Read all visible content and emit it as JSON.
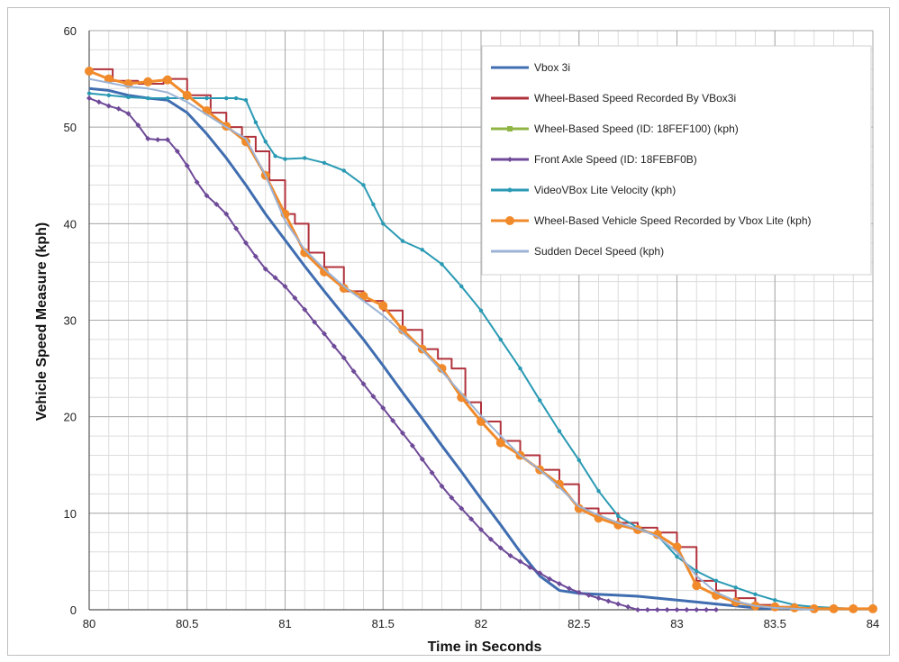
{
  "chart_data": {
    "type": "line",
    "title": "",
    "xlabel": "Time in Seconds",
    "ylabel": "Vehicle Speed Measure (kph)",
    "xlim": [
      80,
      84
    ],
    "ylim": [
      0,
      60
    ],
    "x_ticks": [
      80,
      80.5,
      81,
      81.5,
      82,
      82.5,
      83,
      83.5,
      84
    ],
    "x_tick_labels": [
      "80",
      "80.5",
      "81",
      "81.5",
      "82",
      "82.5",
      "83",
      "83.5",
      "84"
    ],
    "y_ticks": [
      0,
      10,
      20,
      30,
      40,
      50,
      60
    ],
    "y_tick_labels": [
      "0",
      "10",
      "20",
      "30",
      "40",
      "50",
      "60"
    ],
    "grid": true,
    "legend_position": "top-right",
    "series": [
      {
        "name": "Vbox 3i",
        "color": "#3f6db0",
        "marker": "none",
        "step": false,
        "x": [
          80,
          80.1,
          80.2,
          80.3,
          80.4,
          80.5,
          80.6,
          80.7,
          80.8,
          80.9,
          81,
          81.1,
          81.2,
          81.3,
          81.4,
          81.5,
          81.6,
          81.7,
          81.8,
          81.9,
          82,
          82.1,
          82.2,
          82.3,
          82.4,
          82.5,
          82.6,
          82.7,
          82.8,
          82.9,
          83,
          83.1,
          83.2,
          83.3,
          83.4,
          83.5
        ],
        "y": [
          54,
          53.8,
          53.3,
          53,
          52.8,
          51.5,
          49.3,
          46.8,
          44,
          41,
          38.3,
          35.6,
          33,
          30.5,
          28,
          25.3,
          22.5,
          19.8,
          17,
          14.3,
          11.5,
          8.8,
          6,
          3.5,
          2,
          1.7,
          1.6,
          1.5,
          1.4,
          1.2,
          1,
          0.8,
          0.6,
          0.4,
          0.2,
          0.1
        ]
      },
      {
        "name": "Wheel-Based Speed Recorded By VBox3i",
        "color": "#b0323c",
        "marker": "none",
        "step": true,
        "x": [
          80,
          80.12,
          80.25,
          80.38,
          80.5,
          80.62,
          80.7,
          80.78,
          80.85,
          80.92,
          81,
          81.05,
          81.12,
          81.2,
          81.3,
          81.4,
          81.5,
          81.6,
          81.7,
          81.78,
          81.85,
          81.92,
          82,
          82.1,
          82.2,
          82.3,
          82.4,
          82.5,
          82.6,
          82.7,
          82.8,
          82.9,
          83,
          83.1,
          83.2,
          83.3,
          83.4,
          83.5,
          83.6,
          83.7
        ],
        "y": [
          56,
          54.8,
          54.5,
          55,
          53.3,
          51.5,
          50,
          49,
          47.5,
          44.5,
          41,
          40,
          37,
          35.5,
          33,
          32,
          31,
          29,
          27,
          26,
          25,
          21.5,
          19.5,
          17.5,
          16,
          14.5,
          13,
          10.5,
          10,
          9,
          8.5,
          8,
          6.5,
          3,
          2,
          1.2,
          0.5,
          0.3,
          0.2,
          0
        ]
      },
      {
        "name": "Wheel-Based Speed (ID: 18FEF100) (kph)",
        "color": "#8fb545",
        "marker": "square",
        "step": false,
        "x": [
          80,
          80.1,
          80.2,
          80.3,
          80.4,
          80.5,
          80.6,
          80.7,
          80.8,
          80.9,
          81,
          81.1,
          81.2,
          81.3,
          81.4,
          81.5,
          81.6,
          81.7,
          81.8,
          81.9,
          82,
          82.1,
          82.2,
          82.3,
          82.4,
          82.5,
          82.6,
          82.7,
          82.8,
          82.9,
          83,
          83.1,
          83.2,
          83.3,
          83.4,
          83.5,
          83.6,
          83.7,
          83.8,
          83.9,
          84
        ],
        "y": [
          55.8,
          55,
          54.5,
          54.7,
          54.9,
          53.3,
          51.7,
          50.1,
          48.5,
          45,
          41,
          37,
          35,
          33.3,
          32.5,
          31.5,
          29,
          27,
          25,
          22,
          19.5,
          17.3,
          16,
          14.5,
          13,
          10.5,
          9.5,
          8.8,
          8.3,
          7.8,
          6.5,
          2.5,
          1.5,
          0.8,
          0.4,
          0.3,
          0.2,
          0.1,
          0.1,
          0.1,
          0.1
        ]
      },
      {
        "name": "Front Axle Speed (ID: 18FEBF0B)",
        "color": "#6e4a98",
        "marker": "diamond",
        "step": false,
        "x": [
          80,
          80.05,
          80.1,
          80.15,
          80.2,
          80.25,
          80.3,
          80.35,
          80.4,
          80.45,
          80.5,
          80.55,
          80.6,
          80.65,
          80.7,
          80.75,
          80.8,
          80.85,
          80.9,
          80.95,
          81,
          81.05,
          81.1,
          81.15,
          81.2,
          81.25,
          81.3,
          81.35,
          81.4,
          81.45,
          81.5,
          81.55,
          81.6,
          81.65,
          81.7,
          81.75,
          81.8,
          81.85,
          81.9,
          81.95,
          82,
          82.05,
          82.1,
          82.15,
          82.2,
          82.25,
          82.3,
          82.35,
          82.4,
          82.45,
          82.5,
          82.55,
          82.6,
          82.65,
          82.7,
          82.75,
          82.8,
          82.85,
          82.9,
          82.95,
          83,
          83.05,
          83.1,
          83.15,
          83.2
        ],
        "y": [
          53,
          52.6,
          52.2,
          51.9,
          51.4,
          50.2,
          48.8,
          48.7,
          48.7,
          47.5,
          46,
          44.3,
          42.9,
          42,
          41,
          39.5,
          38,
          36.6,
          35.3,
          34.4,
          33.5,
          32.3,
          31.1,
          29.8,
          28.6,
          27.3,
          26.1,
          24.7,
          23.4,
          22.1,
          20.9,
          19.6,
          18.3,
          17,
          15.6,
          14.2,
          12.8,
          11.6,
          10.5,
          9.4,
          8.3,
          7.3,
          6.4,
          5.6,
          5,
          4.4,
          3.8,
          3.2,
          2.7,
          2.2,
          1.8,
          1.5,
          1.2,
          0.9,
          0.6,
          0.3,
          0,
          0,
          0,
          0,
          0,
          0,
          0,
          0,
          0
        ]
      },
      {
        "name": "VideoVBox Lite Velocity (kph)",
        "color": "#2a9ab4",
        "marker": "dot",
        "step": false,
        "x": [
          80,
          80.1,
          80.2,
          80.3,
          80.4,
          80.5,
          80.6,
          80.7,
          80.75,
          80.8,
          80.85,
          80.9,
          80.95,
          81,
          81.1,
          81.2,
          81.3,
          81.4,
          81.45,
          81.5,
          81.6,
          81.7,
          81.8,
          81.9,
          82,
          82.1,
          82.2,
          82.3,
          82.4,
          82.5,
          82.6,
          82.7,
          82.8,
          82.9,
          83,
          83.1,
          83.2,
          83.3,
          83.4,
          83.5,
          83.6,
          83.7,
          83.8,
          83.9,
          84
        ],
        "y": [
          53.5,
          53.3,
          53.1,
          53,
          53,
          53,
          53,
          53,
          53,
          52.8,
          50.5,
          48.5,
          47,
          46.7,
          46.8,
          46.3,
          45.5,
          44,
          42,
          40,
          38.2,
          37.3,
          35.8,
          33.5,
          31,
          28,
          25,
          21.7,
          18.5,
          15.5,
          12.3,
          9.7,
          8.5,
          7.7,
          5.5,
          4,
          3,
          2.3,
          1.6,
          1,
          0.5,
          0.3,
          0.2,
          0.1,
          0.1
        ]
      },
      {
        "name": "Wheel-Based Vehicle Speed Recorded by Vbox Lite (kph)",
        "color": "#f08a2a",
        "marker": "circle",
        "step": false,
        "x": [
          80,
          80.1,
          80.2,
          80.3,
          80.4,
          80.5,
          80.6,
          80.7,
          80.8,
          80.9,
          81,
          81.1,
          81.2,
          81.3,
          81.4,
          81.5,
          81.6,
          81.7,
          81.8,
          81.9,
          82,
          82.1,
          82.2,
          82.3,
          82.4,
          82.5,
          82.6,
          82.7,
          82.8,
          82.9,
          83,
          83.1,
          83.2,
          83.3,
          83.4,
          83.5,
          83.6,
          83.7,
          83.8,
          83.9,
          84
        ],
        "y": [
          55.8,
          55,
          54.5,
          54.7,
          54.9,
          53.3,
          51.7,
          50.1,
          48.5,
          45,
          41,
          37,
          35,
          33.3,
          32.5,
          31.5,
          29,
          27,
          25,
          22,
          19.5,
          17.3,
          16,
          14.5,
          13,
          10.5,
          9.5,
          8.8,
          8.3,
          7.8,
          6.5,
          2.5,
          1.5,
          0.8,
          0.4,
          0.3,
          0.2,
          0.1,
          0.1,
          0.1,
          0.1
        ]
      },
      {
        "name": "Sudden Decel Speed (kph)",
        "color": "#9cb3d6",
        "marker": "none",
        "step": false,
        "x": [
          80,
          80.1,
          80.2,
          80.3,
          80.4,
          80.5,
          80.6,
          80.7,
          80.8,
          80.9,
          81,
          81.1,
          81.2,
          81.3,
          81.4,
          81.5,
          81.6,
          81.7,
          81.8,
          81.9,
          82,
          82.1,
          82.2,
          82.3,
          82.4,
          82.5,
          82.6,
          82.7,
          82.8,
          82.9,
          83,
          83.1,
          83.2,
          83.3,
          83.4,
          83.5,
          83.6,
          83.7
        ],
        "y": [
          55,
          54.6,
          54.2,
          54,
          53.6,
          52.6,
          51.3,
          50,
          48.8,
          45,
          40.3,
          37.3,
          35.3,
          33.5,
          32,
          30.5,
          28.7,
          26.9,
          24.7,
          22.4,
          20.1,
          18,
          16,
          14.5,
          12.7,
          10.7,
          9.8,
          9,
          8.4,
          7.6,
          6,
          3.5,
          1.8,
          0.9,
          0.4,
          0.2,
          0.1,
          0
        ]
      }
    ]
  }
}
